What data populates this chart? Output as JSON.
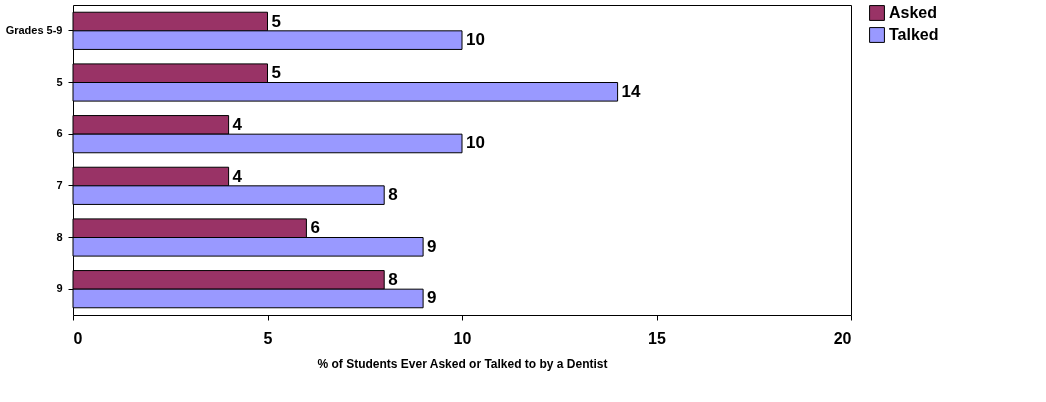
{
  "chart_data": {
    "type": "bar",
    "orientation": "horizontal",
    "xlabel": "% of Students Ever Asked or Talked to by a Dentist",
    "categories": [
      "Grades 5-9",
      "5",
      "6",
      "7",
      "8",
      "9"
    ],
    "series": [
      {
        "name": "Asked",
        "color": "#993366",
        "values": [
          5,
          5,
          4,
          4,
          6,
          8
        ]
      },
      {
        "name": "Talked",
        "color": "#9999ff",
        "values": [
          10,
          14,
          10,
          8,
          9,
          9
        ]
      }
    ],
    "xlim": [
      0,
      20
    ],
    "xticks": [
      0,
      5,
      10,
      15,
      20
    ],
    "grid": false,
    "legend": "right",
    "data_labels": true
  }
}
